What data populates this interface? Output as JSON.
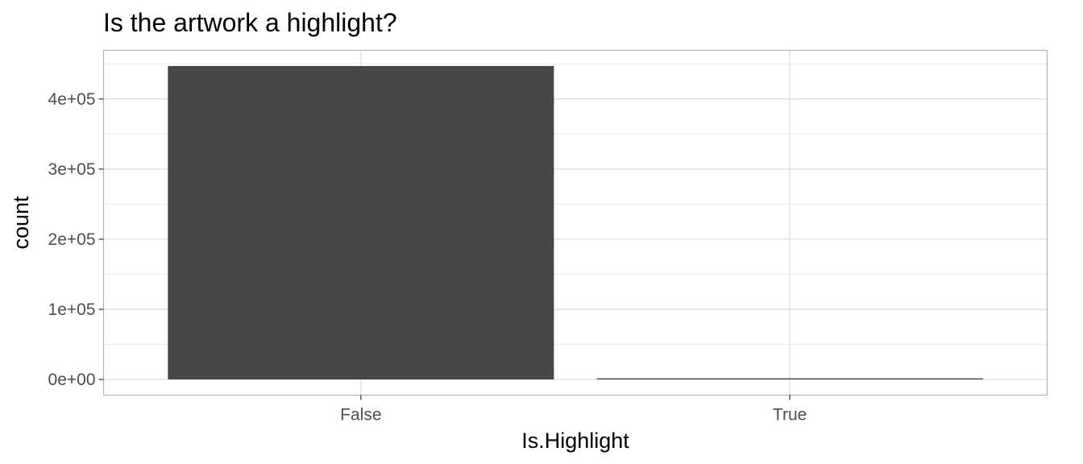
{
  "chart_data": {
    "type": "bar",
    "title": "Is the artwork a highlight?",
    "xlabel": "Is.Highlight",
    "ylabel": "count",
    "categories": [
      "False",
      "True"
    ],
    "values": [
      447000,
      1600
    ],
    "ylim": [
      -22350,
      469350
    ],
    "yticks": [
      0,
      100000,
      200000,
      300000,
      400000
    ],
    "ytick_labels": [
      "0e+00",
      "1e+05",
      "2e+05",
      "3e+05",
      "4e+05"
    ],
    "grid": true,
    "legend": "none",
    "colors": {
      "bar": "#474747",
      "grid_major": "#dcdcdc",
      "grid_minor": "#ececec",
      "panel_border": "#b3b3b3",
      "tick_text": "#4d4d4d"
    }
  }
}
